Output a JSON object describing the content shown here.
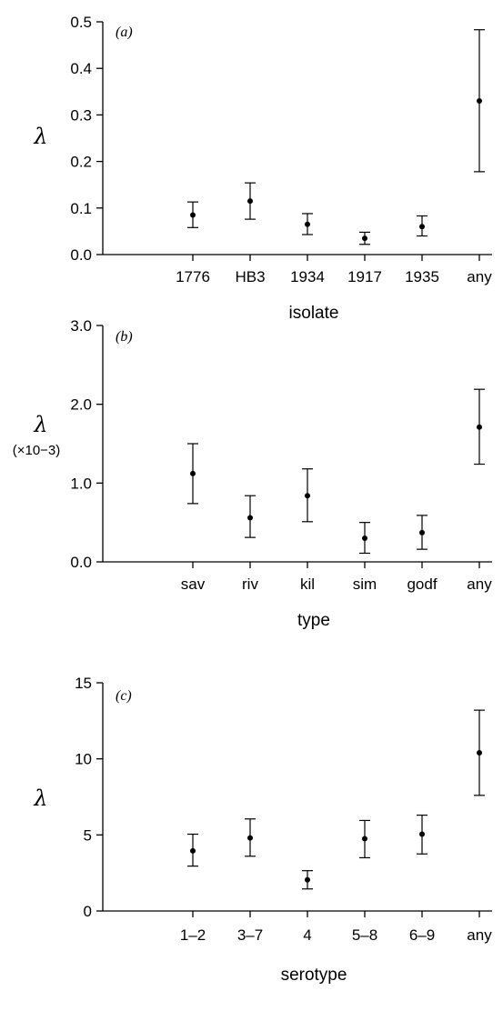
{
  "chart_data": [
    {
      "type": "scatter",
      "panel_label": "(a)",
      "ylabel": "λ",
      "ylabel_scale": "",
      "xlabel": "isolate",
      "categories": [
        "1776",
        "HB3",
        "1934",
        "1917",
        "1935",
        "any"
      ],
      "values": [
        0.085,
        0.115,
        0.065,
        0.035,
        0.06,
        0.33
      ],
      "lower": [
        0.058,
        0.076,
        0.043,
        0.022,
        0.04,
        0.178
      ],
      "upper": [
        0.113,
        0.154,
        0.088,
        0.048,
        0.083,
        0.483
      ],
      "ylim": [
        0,
        0.5
      ],
      "yticks": [
        "0.0",
        "0.1",
        "0.2",
        "0.3",
        "0.4",
        "0.5"
      ],
      "error_bars": true,
      "grid": false
    },
    {
      "type": "scatter",
      "panel_label": "(b)",
      "ylabel": "λ",
      "ylabel_scale": "(×10−3)",
      "xlabel": "type",
      "categories": [
        "sav",
        "riv",
        "kil",
        "sim",
        "godf",
        "any"
      ],
      "values": [
        1.12,
        0.56,
        0.84,
        0.3,
        0.37,
        1.71
      ],
      "lower": [
        0.74,
        0.31,
        0.51,
        0.11,
        0.16,
        1.24
      ],
      "upper": [
        1.5,
        0.84,
        1.18,
        0.5,
        0.59,
        2.19
      ],
      "ylim": [
        0,
        3.0
      ],
      "yticks": [
        "0.0",
        "1.0",
        "2.0",
        "3.0"
      ],
      "error_bars": true,
      "grid": false
    },
    {
      "type": "scatter",
      "panel_label": "(c)",
      "ylabel": "λ",
      "ylabel_scale": "",
      "xlabel": "serotype",
      "categories": [
        "1–2",
        "3–7",
        "4",
        "5–8",
        "6–9",
        "any"
      ],
      "values": [
        3.95,
        4.8,
        2.05,
        4.75,
        5.05,
        10.4
      ],
      "lower": [
        2.95,
        3.6,
        1.45,
        3.5,
        3.75,
        7.6
      ],
      "upper": [
        5.05,
        6.05,
        2.65,
        5.95,
        6.3,
        13.2
      ],
      "ylim": [
        0,
        15
      ],
      "yticks": [
        "0",
        "5",
        "10",
        "15"
      ],
      "error_bars": true,
      "grid": false
    }
  ]
}
